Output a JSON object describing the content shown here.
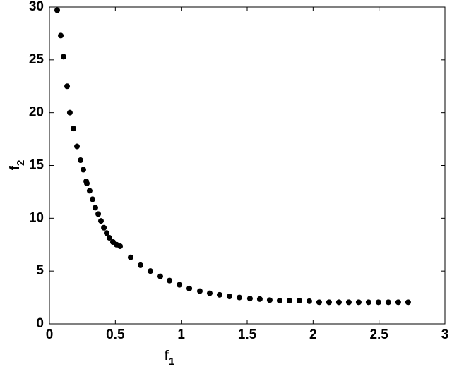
{
  "chart_data": {
    "type": "scatter",
    "xlabel": {
      "base": "f",
      "sub": "1"
    },
    "ylabel": {
      "base": "f",
      "sub": "2"
    },
    "color": "#000000",
    "x": [
      0.059,
      0.086,
      0.107,
      0.134,
      0.155,
      0.182,
      0.209,
      0.236,
      0.257,
      0.279,
      0.284,
      0.305,
      0.327,
      0.348,
      0.37,
      0.391,
      0.413,
      0.434,
      0.455,
      0.482,
      0.509,
      0.536,
      0.616,
      0.691,
      0.766,
      0.841,
      0.911,
      0.986,
      1.061,
      1.141,
      1.216,
      1.291,
      1.366,
      1.441,
      1.521,
      1.596,
      1.671,
      1.746,
      1.821,
      1.896,
      1.971,
      2.046,
      2.121,
      2.196,
      2.271,
      2.346,
      2.421,
      2.496,
      2.571,
      2.646,
      2.721
    ],
    "values": [
      29.7,
      27.3,
      25.3,
      22.5,
      20.0,
      18.5,
      16.8,
      15.5,
      14.6,
      13.5,
      13.3,
      12.6,
      11.8,
      11.0,
      10.4,
      9.75,
      9.1,
      8.6,
      8.15,
      7.75,
      7.5,
      7.35,
      6.3,
      5.55,
      5.0,
      4.5,
      4.1,
      3.7,
      3.35,
      3.1,
      2.9,
      2.75,
      2.6,
      2.5,
      2.4,
      2.35,
      2.25,
      2.2,
      2.2,
      2.2,
      2.15,
      2.05,
      2.05,
      2.05,
      2.05,
      2.05,
      2.05,
      2.05,
      2.05,
      2.05,
      2.05
    ],
    "xlim": [
      0,
      3
    ],
    "xticks": [
      0,
      0.5,
      1,
      1.5,
      2,
      2.5,
      3
    ],
    "ylim": [
      0,
      30
    ],
    "yticks": [
      0,
      5,
      10,
      15,
      20,
      25,
      30
    ],
    "grid": false
  }
}
